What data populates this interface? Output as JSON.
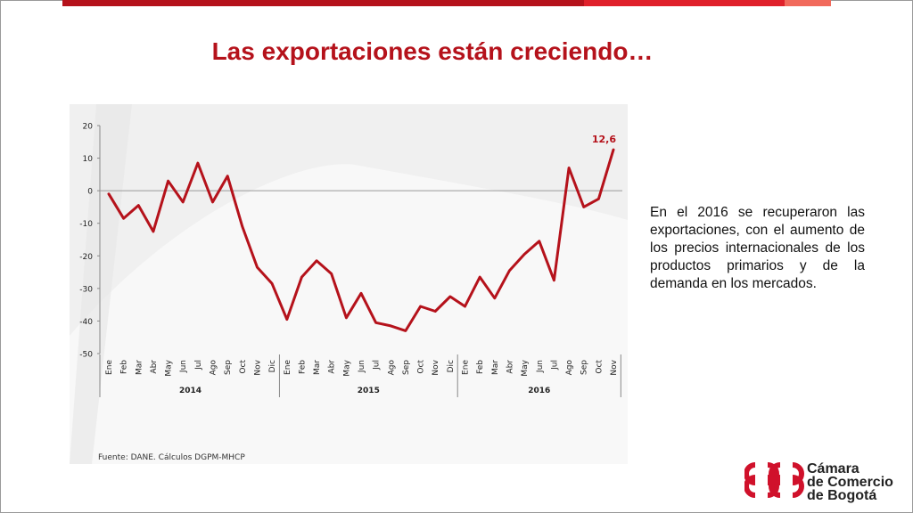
{
  "slide": {
    "title": "Las exportaciones están creciendo…",
    "paragraph": "En el 2016 se recuperaron las exportaciones, con el aumento de los precios internacionales de los productos primarios y de la demanda en los mercados.",
    "source": "Fuente: DANE. Cálculos DGPM-MHCP",
    "logo": {
      "line1": "Cámara",
      "line2": "de Comercio",
      "line3": "de Bogotá"
    }
  },
  "colors": {
    "accent": "#b5121b",
    "panel": "#f0f0f0"
  },
  "chart_data": {
    "type": "line",
    "title": "",
    "xlabel": "",
    "ylabel": "",
    "ylim": [
      -50,
      20
    ],
    "yticks": [
      20,
      10,
      0,
      -10,
      -20,
      -30,
      -40,
      -50
    ],
    "grid": false,
    "legend": "none",
    "annotation": "12,6",
    "years": [
      {
        "label": "2014",
        "count": 12
      },
      {
        "label": "2015",
        "count": 12
      },
      {
        "label": "2016",
        "count": 11
      }
    ],
    "categories": [
      "Ene",
      "Feb",
      "Mar",
      "Abr",
      "May",
      "Jun",
      "Jul",
      "Ago",
      "Sep",
      "Oct",
      "Nov",
      "Dic",
      "Ene",
      "Feb",
      "Mar",
      "Abr",
      "May",
      "Jun",
      "Jul",
      "Ago",
      "Sep",
      "Oct",
      "Nov",
      "Dic",
      "Ene",
      "Feb",
      "Mar",
      "Abr",
      "May",
      "Jun",
      "Jul",
      "Ago",
      "Sep",
      "Oct",
      "Nov"
    ],
    "series": [
      {
        "values": [
          -1,
          -8.5,
          -4.5,
          -12.5,
          3,
          -3.5,
          8.5,
          -3.5,
          4.5,
          -11,
          -23.5,
          -28.5,
          -39.5,
          -26.5,
          -21.5,
          -25.5,
          -39,
          -31.5,
          -40.5,
          -41.5,
          -43,
          -35.5,
          -37,
          -32.5,
          -35.5,
          -26.5,
          -33,
          -24.5,
          -19.5,
          -15.5,
          -27.5,
          7,
          -5,
          -2.5,
          12.6
        ]
      }
    ]
  }
}
